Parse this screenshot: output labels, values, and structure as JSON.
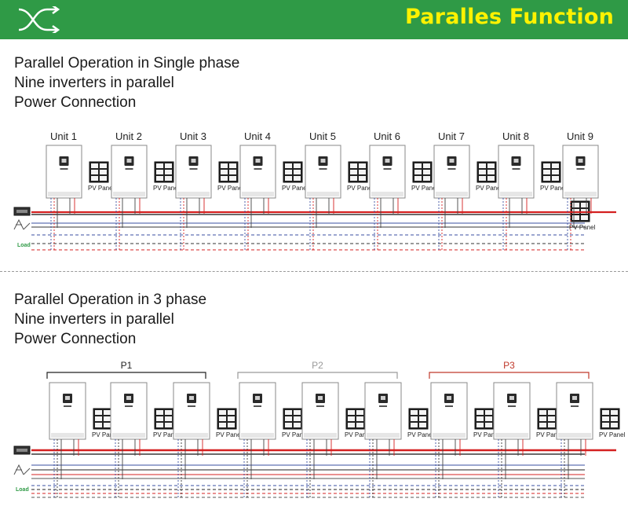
{
  "header": {
    "title": "Paralles Function",
    "logo_icon": "parallel-cross-arrows-icon"
  },
  "sections": [
    {
      "lines": [
        "Parallel Operation in Single phase",
        "Nine inverters in parallel",
        "Power Connection"
      ],
      "units": [
        "Unit 1",
        "Unit 2",
        "Unit 3",
        "Unit 4",
        "Unit 5",
        "Unit 6",
        "Unit 7",
        "Unit 8",
        "Unit 9"
      ],
      "pv_label": "PV Panel",
      "load_label": "Load"
    },
    {
      "lines": [
        "Parallel Operation in 3 phase",
        "Nine inverters in parallel",
        "Power Connection"
      ],
      "groups": [
        {
          "label": "P1",
          "color": "#222222"
        },
        {
          "label": "P2",
          "color": "#9a9a9a"
        },
        {
          "label": "P3",
          "color": "#c0392b"
        }
      ],
      "pv_label": "PV Panel",
      "load_label": "Load"
    }
  ],
  "colors": {
    "green": "#2f9a46",
    "yellow": "#fff200",
    "red": "#d42020",
    "blue": "#3a4fa0",
    "load_green": "#2f9a46"
  }
}
